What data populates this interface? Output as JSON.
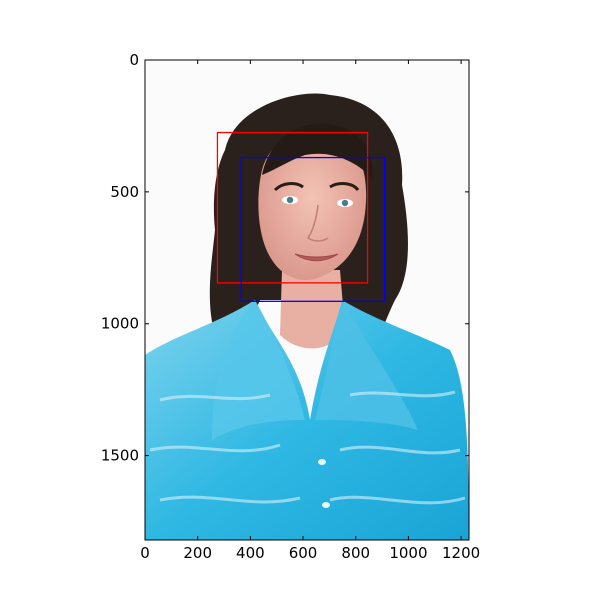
{
  "chart_data": {
    "type": "image",
    "title": "",
    "xlabel": "",
    "ylabel": "",
    "xlim": [
      0,
      1230
    ],
    "ylim": [
      1820,
      0
    ],
    "y_inverted": true,
    "x_ticks": [
      0,
      200,
      400,
      600,
      800,
      1000,
      1200
    ],
    "y_ticks": [
      0,
      500,
      1000,
      1500
    ],
    "x_tick_labels": [
      "0",
      "200",
      "400",
      "600",
      "800",
      "1000",
      "1200"
    ],
    "y_tick_labels": [
      "0",
      "500",
      "1000",
      "1500"
    ],
    "grid": false,
    "image_content": "portrait photo of a smiling woman with dark curly hair wearing a turquoise tie-dye shirt on a white background",
    "boxes": [
      {
        "color": "#ff0000",
        "x0": 275,
        "y0": 275,
        "x1": 845,
        "y1": 845
      },
      {
        "color": "#0000ff",
        "x0": 365,
        "y0": 370,
        "x1": 910,
        "y1": 915
      }
    ]
  }
}
